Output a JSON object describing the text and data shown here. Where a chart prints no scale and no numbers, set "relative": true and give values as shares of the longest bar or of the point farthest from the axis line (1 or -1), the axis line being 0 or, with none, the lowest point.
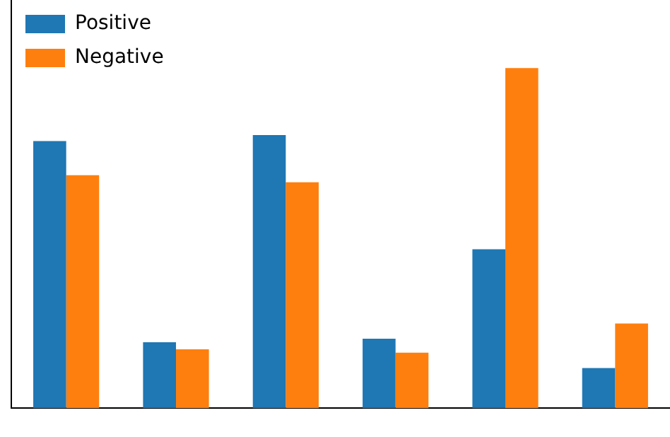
{
  "chart_data": {
    "type": "bar",
    "relative": true,
    "categories": [
      null,
      null,
      null,
      null,
      null,
      null
    ],
    "series": [
      {
        "name": "Positive",
        "color": "#1f77b4",
        "values": [
          0.785,
          0.194,
          0.803,
          0.204,
          0.467,
          0.118
        ]
      },
      {
        "name": "Negative",
        "color": "#ff7f0e",
        "values": [
          0.685,
          0.173,
          0.664,
          0.163,
          1,
          0.249
        ]
      }
    ],
    "legend": "top left",
    "grid": false
  }
}
